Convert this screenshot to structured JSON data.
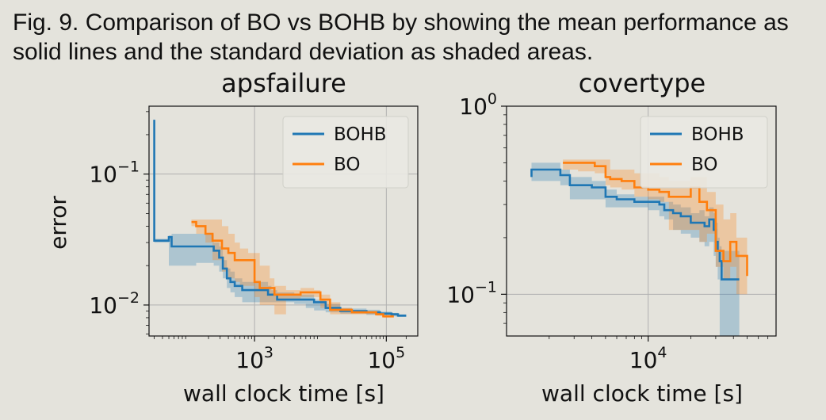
{
  "figure": {
    "caption": "Fig. 9. Comparison of BO vs BOHB by showing the mean performance as solid lines and the standard deviation as shaded areas."
  },
  "colors": {
    "BOHB": "#1f77b4",
    "BO": "#ff7f0e",
    "grid": "#b0b0b0"
  },
  "chart_data": [
    {
      "type": "line",
      "title": "apsfailure",
      "xlabel": "wall clock time [s]",
      "ylabel": "error",
      "xscale": "log",
      "yscale": "log",
      "xlim": [
        25,
        300000
      ],
      "ylim": [
        0.0058,
        0.33
      ],
      "xticks": [
        {
          "value": 1000,
          "base": "10",
          "exp": "3"
        },
        {
          "value": 100000,
          "base": "10",
          "exp": "5"
        }
      ],
      "yticks": [
        {
          "value": 0.01,
          "base": "10",
          "exp": "−2"
        },
        {
          "value": 0.1,
          "base": "10",
          "exp": "−1"
        }
      ],
      "grid": true,
      "legend": {
        "position": "top-right",
        "entries": [
          "BOHB",
          "BO"
        ]
      },
      "series": [
        {
          "name": "BOHB",
          "x": [
            30,
            30,
            31,
            35,
            50,
            55,
            130,
            240,
            290,
            330,
            380,
            430,
            500,
            650,
            1500,
            1600,
            1800,
            2200,
            4000,
            6000,
            8000,
            12000,
            20000,
            30000,
            50000,
            80000,
            120000,
            150000,
            200000
          ],
          "y": [
            0.26,
            0.031,
            0.031,
            0.031,
            0.033,
            0.028,
            0.028,
            0.026,
            0.023,
            0.019,
            0.016,
            0.015,
            0.014,
            0.013,
            0.013,
            0.012,
            0.012,
            0.011,
            0.011,
            0.011,
            0.0105,
            0.0095,
            0.009,
            0.009,
            0.0088,
            0.0086,
            0.0085,
            0.0083,
            0.0083
          ],
          "band_upper": [
            0.26,
            0.032,
            0.032,
            0.032,
            0.034,
            0.035,
            0.035,
            0.03,
            0.028,
            0.022,
            0.019,
            0.018,
            0.016,
            0.015,
            0.015,
            0.014,
            0.013,
            0.0125,
            0.012,
            0.012,
            0.011,
            0.0102,
            0.0095,
            0.0094,
            0.0092,
            0.0089,
            0.0087,
            0.0085,
            0.0085
          ],
          "band_lower": [
            0.26,
            0.03,
            0.03,
            0.03,
            0.02,
            0.02,
            0.021,
            0.02,
            0.018,
            0.016,
            0.0135,
            0.0125,
            0.0115,
            0.0105,
            0.0105,
            0.0105,
            0.0105,
            0.0105,
            0.0102,
            0.0095,
            0.0091,
            0.0088,
            0.0086,
            0.0086,
            0.0084,
            0.0083,
            0.0082,
            0.0081,
            0.0081
          ]
        },
        {
          "name": "BO",
          "x": [
            110,
            130,
            180,
            230,
            320,
            400,
            500,
            600,
            800,
            1000,
            1200,
            1700,
            2000,
            3000,
            5000,
            8000,
            10000,
            14000,
            20000,
            30000,
            50000,
            70000,
            90000,
            130000
          ],
          "y": [
            0.043,
            0.04,
            0.035,
            0.031,
            0.027,
            0.025,
            0.022,
            0.022,
            0.022,
            0.015,
            0.0135,
            0.0135,
            0.012,
            0.012,
            0.0125,
            0.0125,
            0.011,
            0.0092,
            0.0092,
            0.0088,
            0.0088,
            0.0085,
            0.0082,
            0.0082
          ],
          "band_upper": [
            0.045,
            0.045,
            0.045,
            0.045,
            0.04,
            0.035,
            0.03,
            0.027,
            0.025,
            0.025,
            0.02,
            0.016,
            0.014,
            0.013,
            0.0135,
            0.013,
            0.012,
            0.0105,
            0.0095,
            0.009,
            0.009,
            0.0087,
            0.0084,
            0.0084
          ],
          "band_lower": [
            0.04,
            0.035,
            0.03,
            0.022,
            0.018,
            0.016,
            0.015,
            0.014,
            0.014,
            0.0115,
            0.01,
            0.01,
            0.0085,
            0.011,
            0.0115,
            0.0115,
            0.0095,
            0.0085,
            0.0085,
            0.0085,
            0.0085,
            0.0083,
            0.008,
            0.008
          ]
        }
      ]
    },
    {
      "type": "line",
      "title": "covertype",
      "xlabel": "wall clock time [s]",
      "ylabel": "",
      "xscale": "log",
      "yscale": "log",
      "xlim": [
        1000,
        80000
      ],
      "ylim": [
        0.06,
        1.0
      ],
      "xticks": [
        {
          "value": 10000,
          "base": "10",
          "exp": "4"
        }
      ],
      "yticks": [
        {
          "value": 0.1,
          "base": "10",
          "exp": "−1"
        },
        {
          "value": 1,
          "base": "10",
          "exp": "0"
        }
      ],
      "grid": true,
      "legend": {
        "position": "top-right",
        "entries": [
          "BOHB",
          "BO"
        ]
      },
      "series": [
        {
          "name": "BOHB",
          "x": [
            1500,
            1500,
            2400,
            2800,
            4000,
            5000,
            6000,
            8000,
            10000,
            12000,
            13000,
            15000,
            17000,
            20000,
            23000,
            25000,
            27000,
            29000,
            30000,
            31000,
            32000,
            33000,
            44000
          ],
          "y": [
            0.42,
            0.46,
            0.43,
            0.38,
            0.37,
            0.33,
            0.32,
            0.31,
            0.31,
            0.3,
            0.28,
            0.27,
            0.26,
            0.24,
            0.24,
            0.23,
            0.25,
            0.22,
            0.19,
            0.17,
            0.15,
            0.12,
            0.12
          ],
          "band_upper": [
            0.5,
            0.5,
            0.46,
            0.42,
            0.4,
            0.36,
            0.34,
            0.33,
            0.33,
            0.33,
            0.31,
            0.3,
            0.29,
            0.27,
            0.28,
            0.26,
            0.29,
            0.27,
            0.24,
            0.2,
            0.18,
            0.17,
            0.17
          ],
          "band_lower": [
            0.4,
            0.4,
            0.38,
            0.32,
            0.32,
            0.29,
            0.29,
            0.29,
            0.28,
            0.26,
            0.25,
            0.22,
            0.21,
            0.2,
            0.19,
            0.18,
            0.19,
            0.16,
            0.14,
            0.12,
            0.06,
            0.06,
            0.06
          ]
        },
        {
          "name": "BO",
          "x": [
            2500,
            3200,
            4200,
            5000,
            5400,
            6500,
            8000,
            10000,
            12000,
            14000,
            20000,
            23000,
            26000,
            30000,
            34000,
            38000,
            42000,
            50000
          ],
          "y": [
            0.5,
            0.5,
            0.48,
            0.42,
            0.41,
            0.4,
            0.37,
            0.36,
            0.35,
            0.33,
            0.37,
            0.31,
            0.28,
            0.17,
            0.15,
            0.19,
            0.16,
            0.125
          ],
          "band_upper": [
            0.52,
            0.52,
            0.52,
            0.52,
            0.46,
            0.46,
            0.44,
            0.44,
            0.42,
            0.4,
            0.42,
            0.42,
            0.35,
            0.3,
            0.25,
            0.27,
            0.2,
            0.16
          ],
          "band_lower": [
            0.46,
            0.45,
            0.44,
            0.38,
            0.37,
            0.36,
            0.33,
            0.32,
            0.31,
            0.22,
            0.22,
            0.19,
            0.21,
            0.14,
            0.12,
            0.14,
            0.1,
            0.1
          ]
        }
      ]
    }
  ]
}
